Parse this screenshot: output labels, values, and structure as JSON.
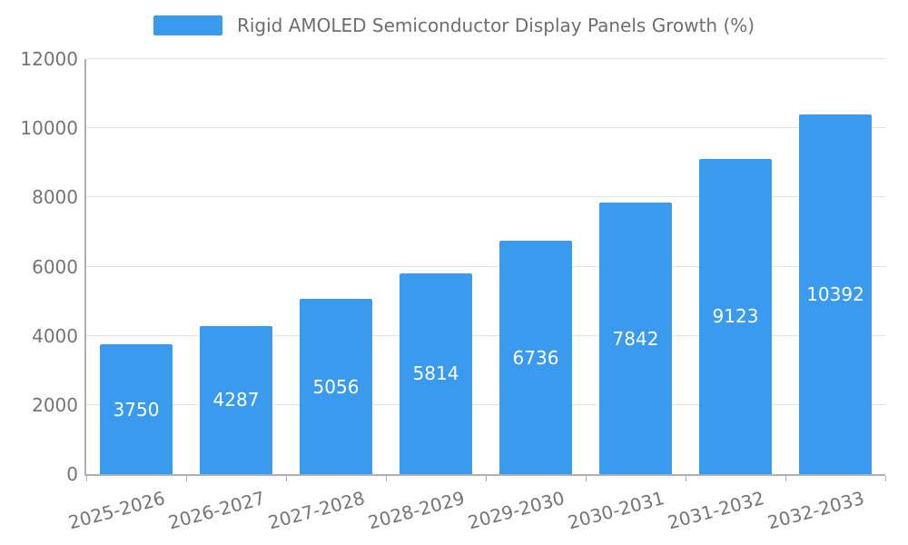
{
  "chart_data": {
    "type": "bar",
    "title": "Rigid AMOLED Semiconductor Display Panels Growth (%)",
    "legend": [
      "Rigid AMOLED Semiconductor Display Panels Growth (%)"
    ],
    "legend_position": "top",
    "categories": [
      "2025-2026",
      "2026-2027",
      "2027-2028",
      "2028-2029",
      "2029-2030",
      "2030-2031",
      "2031-2032",
      "2032-2033"
    ],
    "series": [
      {
        "name": "Rigid AMOLED Semiconductor Display Panels Growth (%)",
        "values": [
          3750,
          4287,
          5056,
          5814,
          6736,
          7842,
          9123,
          10392
        ]
      }
    ],
    "value_labels": [
      "3750",
      "4287",
      "5056",
      "5814",
      "6736",
      "7842",
      "9123",
      "10392"
    ],
    "xlabel": "",
    "ylabel": "",
    "ylim": [
      0,
      12000
    ],
    "y_ticks": [
      0,
      2000,
      4000,
      6000,
      8000,
      10000,
      12000
    ],
    "grid": true,
    "x_label_rotation_deg": 15,
    "colors": {
      "bar": "#3a9aed",
      "value_label": "#ffffff",
      "axis_text": "#757575",
      "title_text": "#6e6e6e",
      "gridline": "#e4e4e4",
      "axis_line": "#b0b0b0",
      "background": "#ffffff"
    }
  }
}
